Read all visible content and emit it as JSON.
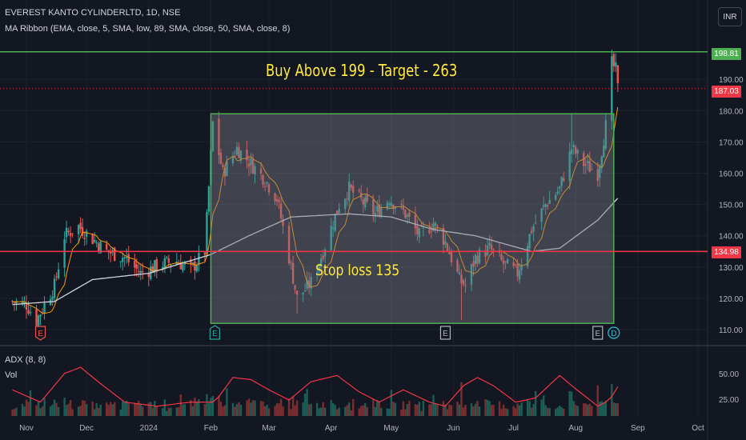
{
  "header": {
    "symbol_line": "EVEREST KANTO CYLINDERLTD, 1D, NSE",
    "indicator_line": "MA Ribbon (EMA, close, 5, SMA, low, 89, SMA, close, 50, SMA, close, 8)"
  },
  "currency_button": "INR",
  "price_tags": {
    "upper_line": "198.81",
    "last_price": "187.03",
    "lower_line": "134.98"
  },
  "annotations": {
    "buy_text": "Buy Above 199 - Target - 263",
    "stop_text": "Stop loss 135"
  },
  "sub_pane": {
    "indicator_label": "ADX (8, 8)",
    "volume_label": "Vol"
  },
  "colors": {
    "background": "#131722",
    "up_candle": "#26a69a",
    "down_candle": "#ef5350",
    "resistance_line": "#4caf50",
    "support_line": "#f23645",
    "box_border": "#4caf50",
    "box_fill": "#787b86",
    "annotation_text": "#ffeb3b",
    "ma_fast": "#ff9800",
    "ma_slow": "#d1d4dc",
    "adx_line": "#f23645",
    "last_price_line": "#f23645"
  },
  "chart_data": {
    "type": "candlestick",
    "title": "EVEREST KANTO CYLINDERLTD, 1D, NSE",
    "price_axis": {
      "ticks": [
        "110.00",
        "120.00",
        "130.00",
        "140.00",
        "150.00",
        "160.00",
        "170.00",
        "180.00",
        "190.00"
      ],
      "range": [
        107,
        201
      ]
    },
    "time_axis": {
      "ticks": [
        "Nov",
        "Dec",
        "2024",
        "Feb",
        "Mar",
        "Apr",
        "May",
        "Jun",
        "Jul",
        "Aug",
        "Sep",
        "Oct"
      ]
    },
    "horizontal_lines": [
      {
        "name": "resistance",
        "value": 198.81
      },
      {
        "name": "support",
        "value": 134.98
      }
    ],
    "last_price": 187.03,
    "consolidation_box": {
      "top": 179,
      "bottom": 112,
      "from": "2024-02-01",
      "to": "2024-08-20"
    },
    "close_path_anchors": [
      {
        "date": "2023-10-25",
        "value": 119
      },
      {
        "date": "2023-11-01",
        "value": 118
      },
      {
        "date": "2023-11-06",
        "value": 113
      },
      {
        "date": "2023-11-15",
        "value": 124
      },
      {
        "date": "2023-11-20",
        "value": 140
      },
      {
        "date": "2023-11-27",
        "value": 143
      },
      {
        "date": "2023-12-04",
        "value": 139
      },
      {
        "date": "2023-12-11",
        "value": 135
      },
      {
        "date": "2023-12-20",
        "value": 133
      },
      {
        "date": "2023-12-28",
        "value": 128
      },
      {
        "date": "2024-01-08",
        "value": 131
      },
      {
        "date": "2024-01-15",
        "value": 132
      },
      {
        "date": "2024-01-22",
        "value": 129
      },
      {
        "date": "2024-01-29",
        "value": 135
      },
      {
        "date": "2024-02-02",
        "value": 176
      },
      {
        "date": "2024-02-07",
        "value": 160
      },
      {
        "date": "2024-02-14",
        "value": 168
      },
      {
        "date": "2024-02-21",
        "value": 163
      },
      {
        "date": "2024-02-28",
        "value": 158
      },
      {
        "date": "2024-03-05",
        "value": 152
      },
      {
        "date": "2024-03-12",
        "value": 130
      },
      {
        "date": "2024-03-15",
        "value": 120
      },
      {
        "date": "2024-03-22",
        "value": 125
      },
      {
        "date": "2024-03-28",
        "value": 135
      },
      {
        "date": "2024-04-05",
        "value": 150
      },
      {
        "date": "2024-04-10",
        "value": 155
      },
      {
        "date": "2024-04-18",
        "value": 150
      },
      {
        "date": "2024-04-23",
        "value": 147
      },
      {
        "date": "2024-04-30",
        "value": 152
      },
      {
        "date": "2024-05-08",
        "value": 147
      },
      {
        "date": "2024-05-15",
        "value": 140
      },
      {
        "date": "2024-05-22",
        "value": 144
      },
      {
        "date": "2024-05-28",
        "value": 138
      },
      {
        "date": "2024-06-04",
        "value": 126
      },
      {
        "date": "2024-06-07",
        "value": 124
      },
      {
        "date": "2024-06-12",
        "value": 133
      },
      {
        "date": "2024-06-19",
        "value": 136
      },
      {
        "date": "2024-06-26",
        "value": 131
      },
      {
        "date": "2024-07-03",
        "value": 128
      },
      {
        "date": "2024-07-10",
        "value": 142
      },
      {
        "date": "2024-07-17",
        "value": 150
      },
      {
        "date": "2024-07-24",
        "value": 155
      },
      {
        "date": "2024-07-30",
        "value": 168
      },
      {
        "date": "2024-08-05",
        "value": 163
      },
      {
        "date": "2024-08-12",
        "value": 160
      },
      {
        "date": "2024-08-16",
        "value": 175
      },
      {
        "date": "2024-08-19",
        "value": 195
      },
      {
        "date": "2024-08-21",
        "value": 193
      },
      {
        "date": "2024-08-22",
        "value": 187
      }
    ],
    "slow_ma_anchors": [
      {
        "date": "2023-10-25",
        "value": 118
      },
      {
        "date": "2023-11-15",
        "value": 119
      },
      {
        "date": "2023-12-04",
        "value": 126
      },
      {
        "date": "2024-01-01",
        "value": 128
      },
      {
        "date": "2024-02-01",
        "value": 134
      },
      {
        "date": "2024-02-20",
        "value": 140
      },
      {
        "date": "2024-03-12",
        "value": 146
      },
      {
        "date": "2024-04-10",
        "value": 147
      },
      {
        "date": "2024-05-01",
        "value": 146
      },
      {
        "date": "2024-05-22",
        "value": 142
      },
      {
        "date": "2024-06-12",
        "value": 140
      },
      {
        "date": "2024-07-10",
        "value": 135
      },
      {
        "date": "2024-07-24",
        "value": 136
      },
      {
        "date": "2024-08-12",
        "value": 145
      },
      {
        "date": "2024-08-22",
        "value": 152
      }
    ],
    "adx": {
      "axis_ticks": [
        "25.00",
        "50.00"
      ],
      "range": [
        10,
        60
      ],
      "anchors": [
        {
          "date": "2023-10-25",
          "value": 34
        },
        {
          "date": "2023-11-08",
          "value": 22
        },
        {
          "date": "2023-11-20",
          "value": 50
        },
        {
          "date": "2023-11-28",
          "value": 56
        },
        {
          "date": "2023-12-08",
          "value": 40
        },
        {
          "date": "2023-12-20",
          "value": 22
        },
        {
          "date": "2024-01-05",
          "value": 18
        },
        {
          "date": "2024-01-22",
          "value": 22
        },
        {
          "date": "2024-02-03",
          "value": 22
        },
        {
          "date": "2024-02-12",
          "value": 46
        },
        {
          "date": "2024-02-21",
          "value": 44
        },
        {
          "date": "2024-03-01",
          "value": 34
        },
        {
          "date": "2024-03-11",
          "value": 24
        },
        {
          "date": "2024-03-22",
          "value": 42
        },
        {
          "date": "2024-04-04",
          "value": 48
        },
        {
          "date": "2024-04-15",
          "value": 32
        },
        {
          "date": "2024-04-25",
          "value": 22
        },
        {
          "date": "2024-05-07",
          "value": 34
        },
        {
          "date": "2024-05-20",
          "value": 22
        },
        {
          "date": "2024-05-28",
          "value": 18
        },
        {
          "date": "2024-06-06",
          "value": 38
        },
        {
          "date": "2024-06-13",
          "value": 46
        },
        {
          "date": "2024-06-21",
          "value": 38
        },
        {
          "date": "2024-07-02",
          "value": 22
        },
        {
          "date": "2024-07-12",
          "value": 26
        },
        {
          "date": "2024-07-24",
          "value": 48
        },
        {
          "date": "2024-08-01",
          "value": 35
        },
        {
          "date": "2024-08-12",
          "value": 18
        },
        {
          "date": "2024-08-18",
          "value": 24
        },
        {
          "date": "2024-08-22",
          "value": 37
        }
      ]
    },
    "earnings_markers": [
      {
        "date": "2023-11-08",
        "label": "E",
        "kind": "negative"
      },
      {
        "date": "2024-02-03",
        "label": "E",
        "kind": "positive"
      },
      {
        "date": "2024-05-28",
        "label": "E",
        "kind": "neutral"
      },
      {
        "date": "2024-08-12",
        "label": "E",
        "kind": "neutral"
      },
      {
        "date": "2024-08-20",
        "label": "D",
        "kind": "dividend"
      }
    ]
  }
}
